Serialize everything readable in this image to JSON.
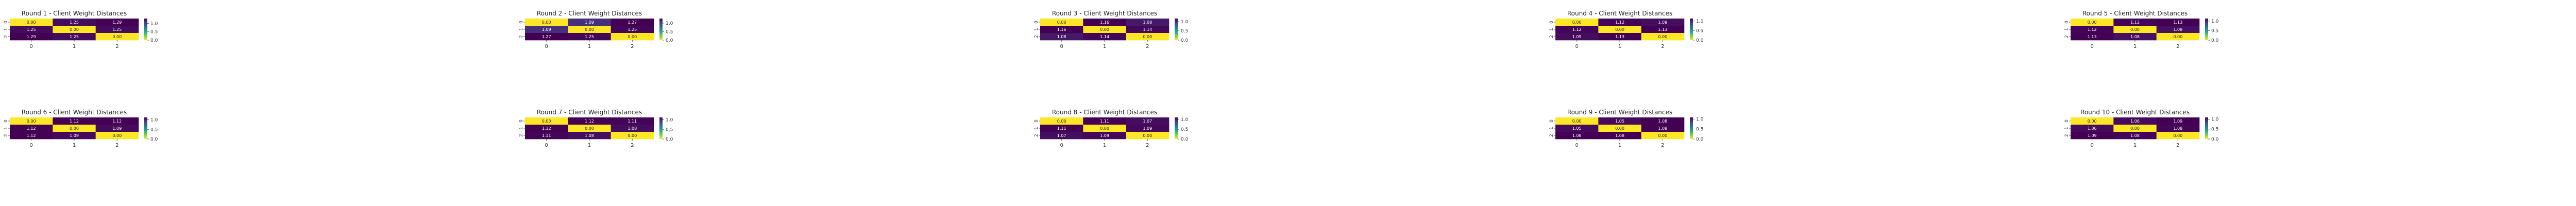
{
  "figure": {
    "colormap": "viridis_r",
    "colors": {
      "low": "#fde725",
      "mid": "#21918c",
      "high": "#440154"
    },
    "value_format": "2 decimals"
  },
  "chart_data": [
    {
      "type": "heatmap",
      "title": "Round 1 - Client Weight Distances",
      "x_ticks": [
        "0",
        "1",
        "2"
      ],
      "y_ticks": [
        "0",
        "1",
        "2"
      ],
      "values": [
        [
          0.0,
          1.25,
          1.29
        ],
        [
          1.25,
          0.0,
          1.25
        ],
        [
          1.29,
          1.25,
          0.0
        ]
      ],
      "colorbar_ticks": [
        "0.0",
        "0.5",
        "1.0"
      ],
      "vmin": 0.0,
      "vmax": 1.29
    },
    {
      "type": "heatmap",
      "title": "Round 2 - Client Weight Distances",
      "x_ticks": [
        "0",
        "1",
        "2"
      ],
      "y_ticks": [
        "0",
        "1",
        "2"
      ],
      "values": [
        [
          0.0,
          1.09,
          1.27
        ],
        [
          1.09,
          0.0,
          1.25
        ],
        [
          1.27,
          1.25,
          0.0
        ]
      ],
      "colorbar_ticks": [
        "0.0",
        "0.5",
        "1.0"
      ],
      "vmin": 0.0,
      "vmax": 1.27
    },
    {
      "type": "heatmap",
      "title": "Round 3 - Client Weight Distances",
      "x_ticks": [
        "0",
        "1",
        "2"
      ],
      "y_ticks": [
        "0",
        "1",
        "2"
      ],
      "values": [
        [
          0.0,
          1.16,
          1.08
        ],
        [
          1.16,
          0.0,
          1.14
        ],
        [
          1.08,
          1.14,
          0.0
        ]
      ],
      "colorbar_ticks": [
        "0.0",
        "0.5",
        "1.0"
      ],
      "vmin": 0.0,
      "vmax": 1.16
    },
    {
      "type": "heatmap",
      "title": "Round 4 - Client Weight Distances",
      "x_ticks": [
        "0",
        "1",
        "2"
      ],
      "y_ticks": [
        "0",
        "1",
        "2"
      ],
      "values": [
        [
          0.0,
          1.12,
          1.09
        ],
        [
          1.12,
          0.0,
          1.13
        ],
        [
          1.09,
          1.13,
          0.0
        ]
      ],
      "colorbar_ticks": [
        "0.0",
        "0.5",
        "1.0"
      ],
      "vmin": 0.0,
      "vmax": 1.13
    },
    {
      "type": "heatmap",
      "title": "Round 5 - Client Weight Distances",
      "x_ticks": [
        "0",
        "1",
        "2"
      ],
      "y_ticks": [
        "0",
        "1",
        "2"
      ],
      "values": [
        [
          0.0,
          1.12,
          1.13
        ],
        [
          1.12,
          0.0,
          1.08
        ],
        [
          1.13,
          1.08,
          0.0
        ]
      ],
      "colorbar_ticks": [
        "0.0",
        "0.5",
        "1.0"
      ],
      "vmin": 0.0,
      "vmax": 1.13
    },
    {
      "type": "heatmap",
      "title": "Round 6 - Client Weight Distances",
      "x_ticks": [
        "0",
        "1",
        "2"
      ],
      "y_ticks": [
        "0",
        "1",
        "2"
      ],
      "values": [
        [
          0.0,
          1.12,
          1.12
        ],
        [
          1.12,
          0.0,
          1.09
        ],
        [
          1.12,
          1.09,
          0.0
        ]
      ],
      "colorbar_ticks": [
        "0.0",
        "0.5",
        "1.0"
      ],
      "vmin": 0.0,
      "vmax": 1.12
    },
    {
      "type": "heatmap",
      "title": "Round 7 - Client Weight Distances",
      "x_ticks": [
        "0",
        "1",
        "2"
      ],
      "y_ticks": [
        "0",
        "1",
        "2"
      ],
      "values": [
        [
          0.0,
          1.12,
          1.11
        ],
        [
          1.12,
          0.0,
          1.08
        ],
        [
          1.11,
          1.08,
          0.0
        ]
      ],
      "colorbar_ticks": [
        "0.0",
        "0.5",
        "1.0"
      ],
      "vmin": 0.0,
      "vmax": 1.12
    },
    {
      "type": "heatmap",
      "title": "Round 8 - Client Weight Distances",
      "x_ticks": [
        "0",
        "1",
        "2"
      ],
      "y_ticks": [
        "0",
        "1",
        "2"
      ],
      "values": [
        [
          0.0,
          1.11,
          1.07
        ],
        [
          1.11,
          0.0,
          1.09
        ],
        [
          1.07,
          1.09,
          0.0
        ]
      ],
      "colorbar_ticks": [
        "0.0",
        "0.5",
        "1.0"
      ],
      "vmin": 0.0,
      "vmax": 1.11
    },
    {
      "type": "heatmap",
      "title": "Round 9 - Client Weight Distances",
      "x_ticks": [
        "0",
        "1",
        "2"
      ],
      "y_ticks": [
        "0",
        "1",
        "2"
      ],
      "values": [
        [
          0.0,
          1.05,
          1.08
        ],
        [
          1.05,
          0.0,
          1.08
        ],
        [
          1.08,
          1.08,
          0.0
        ]
      ],
      "colorbar_ticks": [
        "0.0",
        "0.5",
        "1.0"
      ],
      "vmin": 0.0,
      "vmax": 1.08
    },
    {
      "type": "heatmap",
      "title": "Round 10 - Client Weight Distances",
      "x_ticks": [
        "0",
        "1",
        "2"
      ],
      "y_ticks": [
        "0",
        "1",
        "2"
      ],
      "values": [
        [
          0.0,
          1.06,
          1.09
        ],
        [
          1.06,
          0.0,
          1.08
        ],
        [
          1.09,
          1.08,
          0.0
        ]
      ],
      "colorbar_ticks": [
        "0.0",
        "0.5",
        "1.0"
      ],
      "vmin": 0.0,
      "vmax": 1.09
    }
  ]
}
